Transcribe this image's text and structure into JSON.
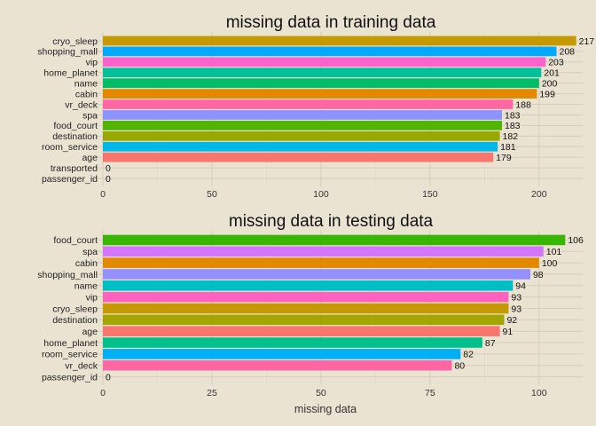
{
  "chart_data": [
    {
      "type": "bar",
      "orientation": "horizontal",
      "title": "missing data in training data",
      "xlabel": "",
      "xlim": [
        0,
        220
      ],
      "xticks": [
        0,
        50,
        100,
        150,
        200
      ],
      "grid": true,
      "categories": [
        "cryo_sleep",
        "shopping_mall",
        "vip",
        "home_planet",
        "name",
        "cabin",
        "vr_deck",
        "spa",
        "food_court",
        "destination",
        "room_service",
        "age",
        "transported",
        "passenger_id"
      ],
      "values": [
        217,
        208,
        203,
        201,
        200,
        199,
        188,
        183,
        183,
        182,
        181,
        179,
        0,
        0
      ],
      "colors": [
        "#C49A00",
        "#00A9FF",
        "#FF61CC",
        "#00C19A",
        "#00BE67",
        "#E38900",
        "#FF67A4",
        "#8B93FF",
        "#53B400",
        "#99A800",
        "#00B8E7",
        "#F8766D",
        "#00C08B",
        "#D575FE"
      ]
    },
    {
      "type": "bar",
      "orientation": "horizontal",
      "title": "missing data in testing data",
      "xlabel": "missing data",
      "xlim": [
        0,
        110
      ],
      "xticks": [
        0,
        25,
        50,
        75,
        100
      ],
      "grid": true,
      "categories": [
        "food_court",
        "spa",
        "cabin",
        "shopping_mall",
        "name",
        "vip",
        "cryo_sleep",
        "destination",
        "age",
        "home_planet",
        "room_service",
        "vr_deck",
        "passenger_id"
      ],
      "values": [
        106,
        101,
        100,
        98,
        94,
        93,
        93,
        92,
        91,
        87,
        82,
        80,
        0
      ],
      "colors": [
        "#39B600",
        "#D575FE",
        "#E38900",
        "#9590FF",
        "#00BFC4",
        "#FF62BC",
        "#C49A00",
        "#A3A500",
        "#F8766D",
        "#00C08B",
        "#00B0F6",
        "#FF67A4",
        "#E76BF3"
      ]
    }
  ]
}
